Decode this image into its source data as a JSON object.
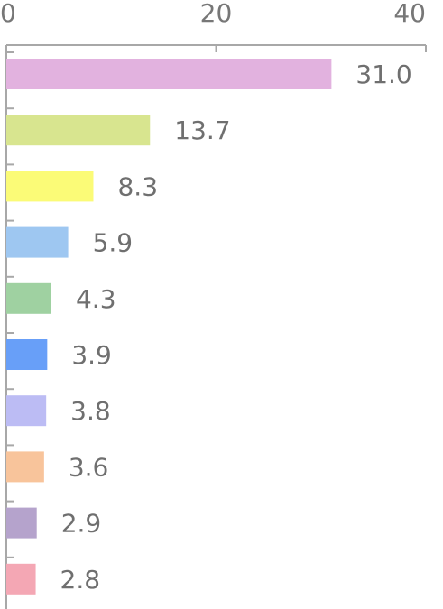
{
  "chart_data": {
    "type": "bar",
    "orientation": "horizontal",
    "title": "",
    "xlabel": "",
    "ylabel": "",
    "xlim": [
      0,
      40
    ],
    "x_ticks": [
      "0",
      "20",
      "40"
    ],
    "grid": false,
    "values": [
      31.0,
      13.7,
      8.3,
      5.9,
      4.3,
      3.9,
      3.8,
      3.6,
      2.9,
      2.8
    ],
    "value_labels": [
      "31.0",
      "13.7",
      "8.3",
      "5.9",
      "4.3",
      "3.9",
      "3.8",
      "3.6",
      "2.9",
      "2.8"
    ],
    "colors": [
      "#e2b2df",
      "#d8e58f",
      "#fbfb77",
      "#9ec7f1",
      "#9fd1a1",
      "#689ff8",
      "#bcbcf4",
      "#f8c49b",
      "#b5a3cc",
      "#f4a7b4"
    ]
  }
}
